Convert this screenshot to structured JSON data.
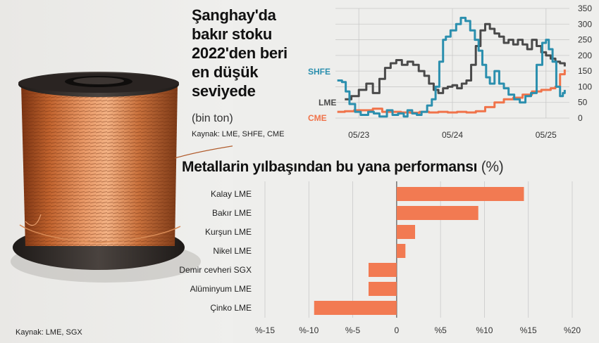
{
  "stock_chart": {
    "title": "Şanghay'da bakır stoku 2022'den beri en düşük seviyede",
    "unit": "(bin ton)",
    "source": "Kaynak: LME, SHFE, CME"
  },
  "perf_chart": {
    "title_main": "Metallarin yılbaşından bu yana performansı",
    "title_unit": "(%)",
    "source": "Kaynak: LME, SGX"
  },
  "colors": {
    "shfe": "#2b8fae",
    "lme": "#4a4a4a",
    "cme": "#f0734a",
    "bar": "#f27a52",
    "grid": "#c9c9c9"
  },
  "chart_data": [
    {
      "type": "line",
      "title": "Şanghay'da bakır stoku 2022'den beri en düşük seviyede",
      "ylabel": "(bin ton)",
      "x_ticks": [
        "05/23",
        "05/24",
        "05/25"
      ],
      "xlim": [
        -0.5,
        24.5
      ],
      "y_ticks": [
        0,
        50,
        100,
        150,
        200,
        250,
        300,
        350
      ],
      "ylim": [
        0,
        350
      ],
      "grid": true,
      "series": [
        {
          "name": "SHFE",
          "color": "#2b8fae",
          "x": [
            -0.3,
            0.2,
            0.6,
            1.0,
            1.6,
            2.2,
            3.0,
            3.6,
            4.2,
            5.0,
            5.6,
            6.2,
            6.8,
            7.2,
            7.7,
            8.2,
            8.7,
            9.3,
            9.8,
            10.2,
            10.6,
            11.0,
            11.3,
            11.8,
            12.4,
            12.9,
            13.4,
            13.9,
            14.4,
            14.8,
            15.2,
            15.6,
            16.0,
            16.5,
            17.0,
            17.5,
            18.0,
            18.6,
            19.2,
            19.8,
            20.4,
            21.0,
            21.6,
            22.0,
            22.3,
            22.7,
            23.1,
            23.5,
            23.8,
            24.0
          ],
          "y": [
            120,
            115,
            85,
            45,
            20,
            10,
            20,
            15,
            5,
            25,
            10,
            15,
            5,
            25,
            15,
            10,
            20,
            40,
            60,
            100,
            180,
            250,
            260,
            280,
            300,
            320,
            310,
            280,
            250,
            215,
            170,
            130,
            110,
            150,
            110,
            95,
            75,
            60,
            50,
            70,
            80,
            170,
            240,
            250,
            220,
            180,
            100,
            70,
            80,
            90
          ]
        },
        {
          "name": "LME",
          "color": "#4a4a4a",
          "x": [
            0.5,
            1.2,
            2.0,
            2.8,
            3.5,
            4.2,
            4.8,
            5.4,
            6.0,
            6.6,
            7.2,
            7.8,
            8.4,
            9.0,
            9.5,
            10.0,
            10.5,
            11.0,
            11.5,
            12.0,
            12.5,
            13.0,
            13.5,
            14.0,
            14.5,
            15.0,
            15.5,
            16.0,
            16.5,
            17.0,
            17.5,
            18.0,
            18.5,
            19.0,
            19.5,
            20.0,
            20.5,
            21.0,
            21.5,
            22.0,
            22.5,
            23.0,
            23.5,
            24.0
          ],
          "y": [
            60,
            70,
            90,
            110,
            80,
            125,
            160,
            175,
            185,
            170,
            180,
            170,
            150,
            135,
            110,
            90,
            80,
            95,
            100,
            105,
            95,
            110,
            120,
            170,
            230,
            280,
            300,
            285,
            270,
            260,
            240,
            250,
            235,
            250,
            235,
            220,
            250,
            230,
            210,
            200,
            190,
            180,
            175,
            165
          ]
        },
        {
          "name": "CME",
          "color": "#f0734a",
          "x": [
            -0.3,
            0.5,
            1.5,
            2.5,
            3.5,
            4.5,
            5.5,
            6.5,
            7.5,
            8.5,
            9.5,
            10.5,
            11.5,
            12.5,
            13.5,
            14.5,
            15.5,
            16.5,
            17.5,
            18.5,
            19.5,
            20.5,
            21.5,
            22.5,
            23.0,
            23.5,
            24.0
          ],
          "y": [
            20,
            22,
            25,
            25,
            30,
            20,
            20,
            18,
            17,
            20,
            18,
            20,
            18,
            20,
            18,
            22,
            35,
            50,
            60,
            65,
            75,
            85,
            90,
            95,
            100,
            140,
            155
          ]
        }
      ]
    },
    {
      "type": "bar",
      "orientation": "horizontal",
      "title": "Metallarin yılbaşından bu yana performansı",
      "ylabel": "(%)",
      "categories": [
        "Kalay LME",
        "Bakır LME",
        "Kurşun LME",
        "Nikel LME",
        "Demir cevheri SGX",
        "Alüminyum LME",
        "Çinko LME"
      ],
      "values": [
        14.5,
        9.3,
        2.1,
        1.0,
        -3.2,
        -3.2,
        -9.4
      ],
      "x_ticks": [
        "%-15",
        "%-10",
        "%-5",
        "0",
        "%5",
        "%10",
        "%15",
        "%20"
      ],
      "x_tick_values": [
        -15,
        -10,
        -5,
        0,
        5,
        10,
        15,
        20
      ],
      "xlim": [
        -15,
        20
      ],
      "grid": true
    }
  ]
}
